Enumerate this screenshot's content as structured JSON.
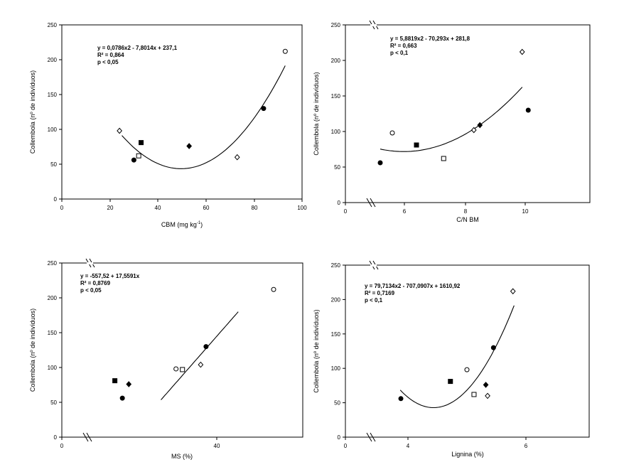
{
  "chart_data": [
    {
      "type": "scatter",
      "xlabel": "CBM (mg kg",
      "xlabel_sup": "-1",
      "xlabel_end": ")",
      "ylabel": "Collembola (nº de indivíduos)",
      "xlim": [
        0,
        100
      ],
      "ylim": [
        0,
        250
      ],
      "xticks": [
        "0",
        "20",
        "40",
        "60",
        "80",
        "100"
      ],
      "yticks": [
        "0",
        "50",
        "100",
        "150",
        "200",
        "250"
      ],
      "axis_break": false,
      "annotation": [
        "y = 0,0786x2 - 7,8014x + 237,1",
        "R² = 0,864",
        "p < 0,05"
      ],
      "fit": {
        "kind": "quadratic",
        "a": 0.0786,
        "b": -7.8014,
        "c": 237.1,
        "x_range": [
          25,
          93
        ]
      },
      "points": [
        {
          "x": 24,
          "y": 98,
          "marker": "diamond-open"
        },
        {
          "x": 30,
          "y": 56,
          "marker": "circle-filled"
        },
        {
          "x": 32,
          "y": 62,
          "marker": "square-open"
        },
        {
          "x": 33,
          "y": 81,
          "marker": "square-filled"
        },
        {
          "x": 53,
          "y": 76,
          "marker": "diamond-filled"
        },
        {
          "x": 73,
          "y": 60,
          "marker": "diamond-open"
        },
        {
          "x": 84,
          "y": 130,
          "marker": "circle-filled"
        },
        {
          "x": 93,
          "y": 212,
          "marker": "circle-open"
        }
      ]
    },
    {
      "type": "scatter",
      "xlabel": "C/N BM",
      "ylabel": "Collembola (nº de indivíduos)",
      "xlim": [
        4,
        11
      ],
      "ylim": [
        0,
        250
      ],
      "xticks": [
        "0",
        "6",
        "8",
        "10"
      ],
      "yticks": [
        "0",
        "50",
        "100",
        "150",
        "200",
        "250"
      ],
      "axis_break": true,
      "annotation": [
        "y = 5,8819x2 - 70,293x + 281,8",
        "R² = 0,663",
        "p < 0,1"
      ],
      "fit": {
        "kind": "quadratic",
        "a": 5.8819,
        "b": -70.293,
        "c": 281.8,
        "x_range": [
          5.2,
          9.9
        ]
      },
      "points": [
        {
          "x": 5.2,
          "y": 56,
          "marker": "circle-filled"
        },
        {
          "x": 5.6,
          "y": 98,
          "marker": "circle-open"
        },
        {
          "x": 6.4,
          "y": 81,
          "marker": "square-filled"
        },
        {
          "x": 7.3,
          "y": 62,
          "marker": "square-open"
        },
        {
          "x": 8.3,
          "y": 102,
          "marker": "diamond-open"
        },
        {
          "x": 8.5,
          "y": 109,
          "marker": "diamond-filled"
        },
        {
          "x": 9.9,
          "y": 212,
          "marker": "diamond-open"
        },
        {
          "x": 10.1,
          "y": 130,
          "marker": "circle-filled"
        }
      ]
    },
    {
      "type": "scatter",
      "xlabel": "MS (%)",
      "ylabel": "Collembola (nº de indivíduos)",
      "xlim": [
        25,
        50
      ],
      "ylim": [
        0,
        250
      ],
      "xticks": [
        "0",
        "40"
      ],
      "yticks": [
        "0",
        "50",
        "100",
        "150",
        "200",
        "250"
      ],
      "axis_break": true,
      "annotation": [
        "y = -557,52 + 17,5591x",
        "R² = 0,8769",
        "p < 0,05"
      ],
      "fit": {
        "kind": "linear",
        "a": 0,
        "b": 17.5591,
        "c": -557.52,
        "x_range": [
          34.8,
          42
        ]
      },
      "points": [
        {
          "x": 30.5,
          "y": 81,
          "marker": "square-filled"
        },
        {
          "x": 31.2,
          "y": 56,
          "marker": "circle-filled"
        },
        {
          "x": 31.8,
          "y": 76,
          "marker": "diamond-filled"
        },
        {
          "x": 36.2,
          "y": 98,
          "marker": "circle-open"
        },
        {
          "x": 36.8,
          "y": 97,
          "marker": "square-open"
        },
        {
          "x": 38.5,
          "y": 104,
          "marker": "diamond-open"
        },
        {
          "x": 39.0,
          "y": 130,
          "marker": "circle-filled"
        },
        {
          "x": 45.3,
          "y": 212,
          "marker": "circle-open"
        }
      ]
    },
    {
      "type": "scatter",
      "xlabel": "Lignina (%)",
      "ylabel": "Collembola (nº de indivíduos)",
      "xlim": [
        2.7,
        7
      ],
      "ylim": [
        0,
        250
      ],
      "xticks": [
        "0",
        "4",
        "6"
      ],
      "yticks": [
        "0",
        "50",
        "100",
        "150",
        "200",
        "250"
      ],
      "axis_break": true,
      "annotation": [
        "y = 79,7134x2 - 707,0907x + 1610,92",
        "R² = 0,7169",
        "p < 0,1"
      ],
      "fit": {
        "kind": "quadratic",
        "a": 79.7134,
        "b": -707.0907,
        "c": 1610.92,
        "x_range": [
          3.87,
          5.8
        ]
      },
      "points": [
        {
          "x": 3.88,
          "y": 56,
          "marker": "circle-filled"
        },
        {
          "x": 4.72,
          "y": 81,
          "marker": "square-filled"
        },
        {
          "x": 5.0,
          "y": 98,
          "marker": "circle-open"
        },
        {
          "x": 5.12,
          "y": 62,
          "marker": "square-open"
        },
        {
          "x": 5.32,
          "y": 76,
          "marker": "diamond-filled"
        },
        {
          "x": 5.35,
          "y": 60,
          "marker": "diamond-open"
        },
        {
          "x": 5.45,
          "y": 130,
          "marker": "circle-filled"
        },
        {
          "x": 5.78,
          "y": 212,
          "marker": "diamond-open"
        }
      ]
    }
  ]
}
